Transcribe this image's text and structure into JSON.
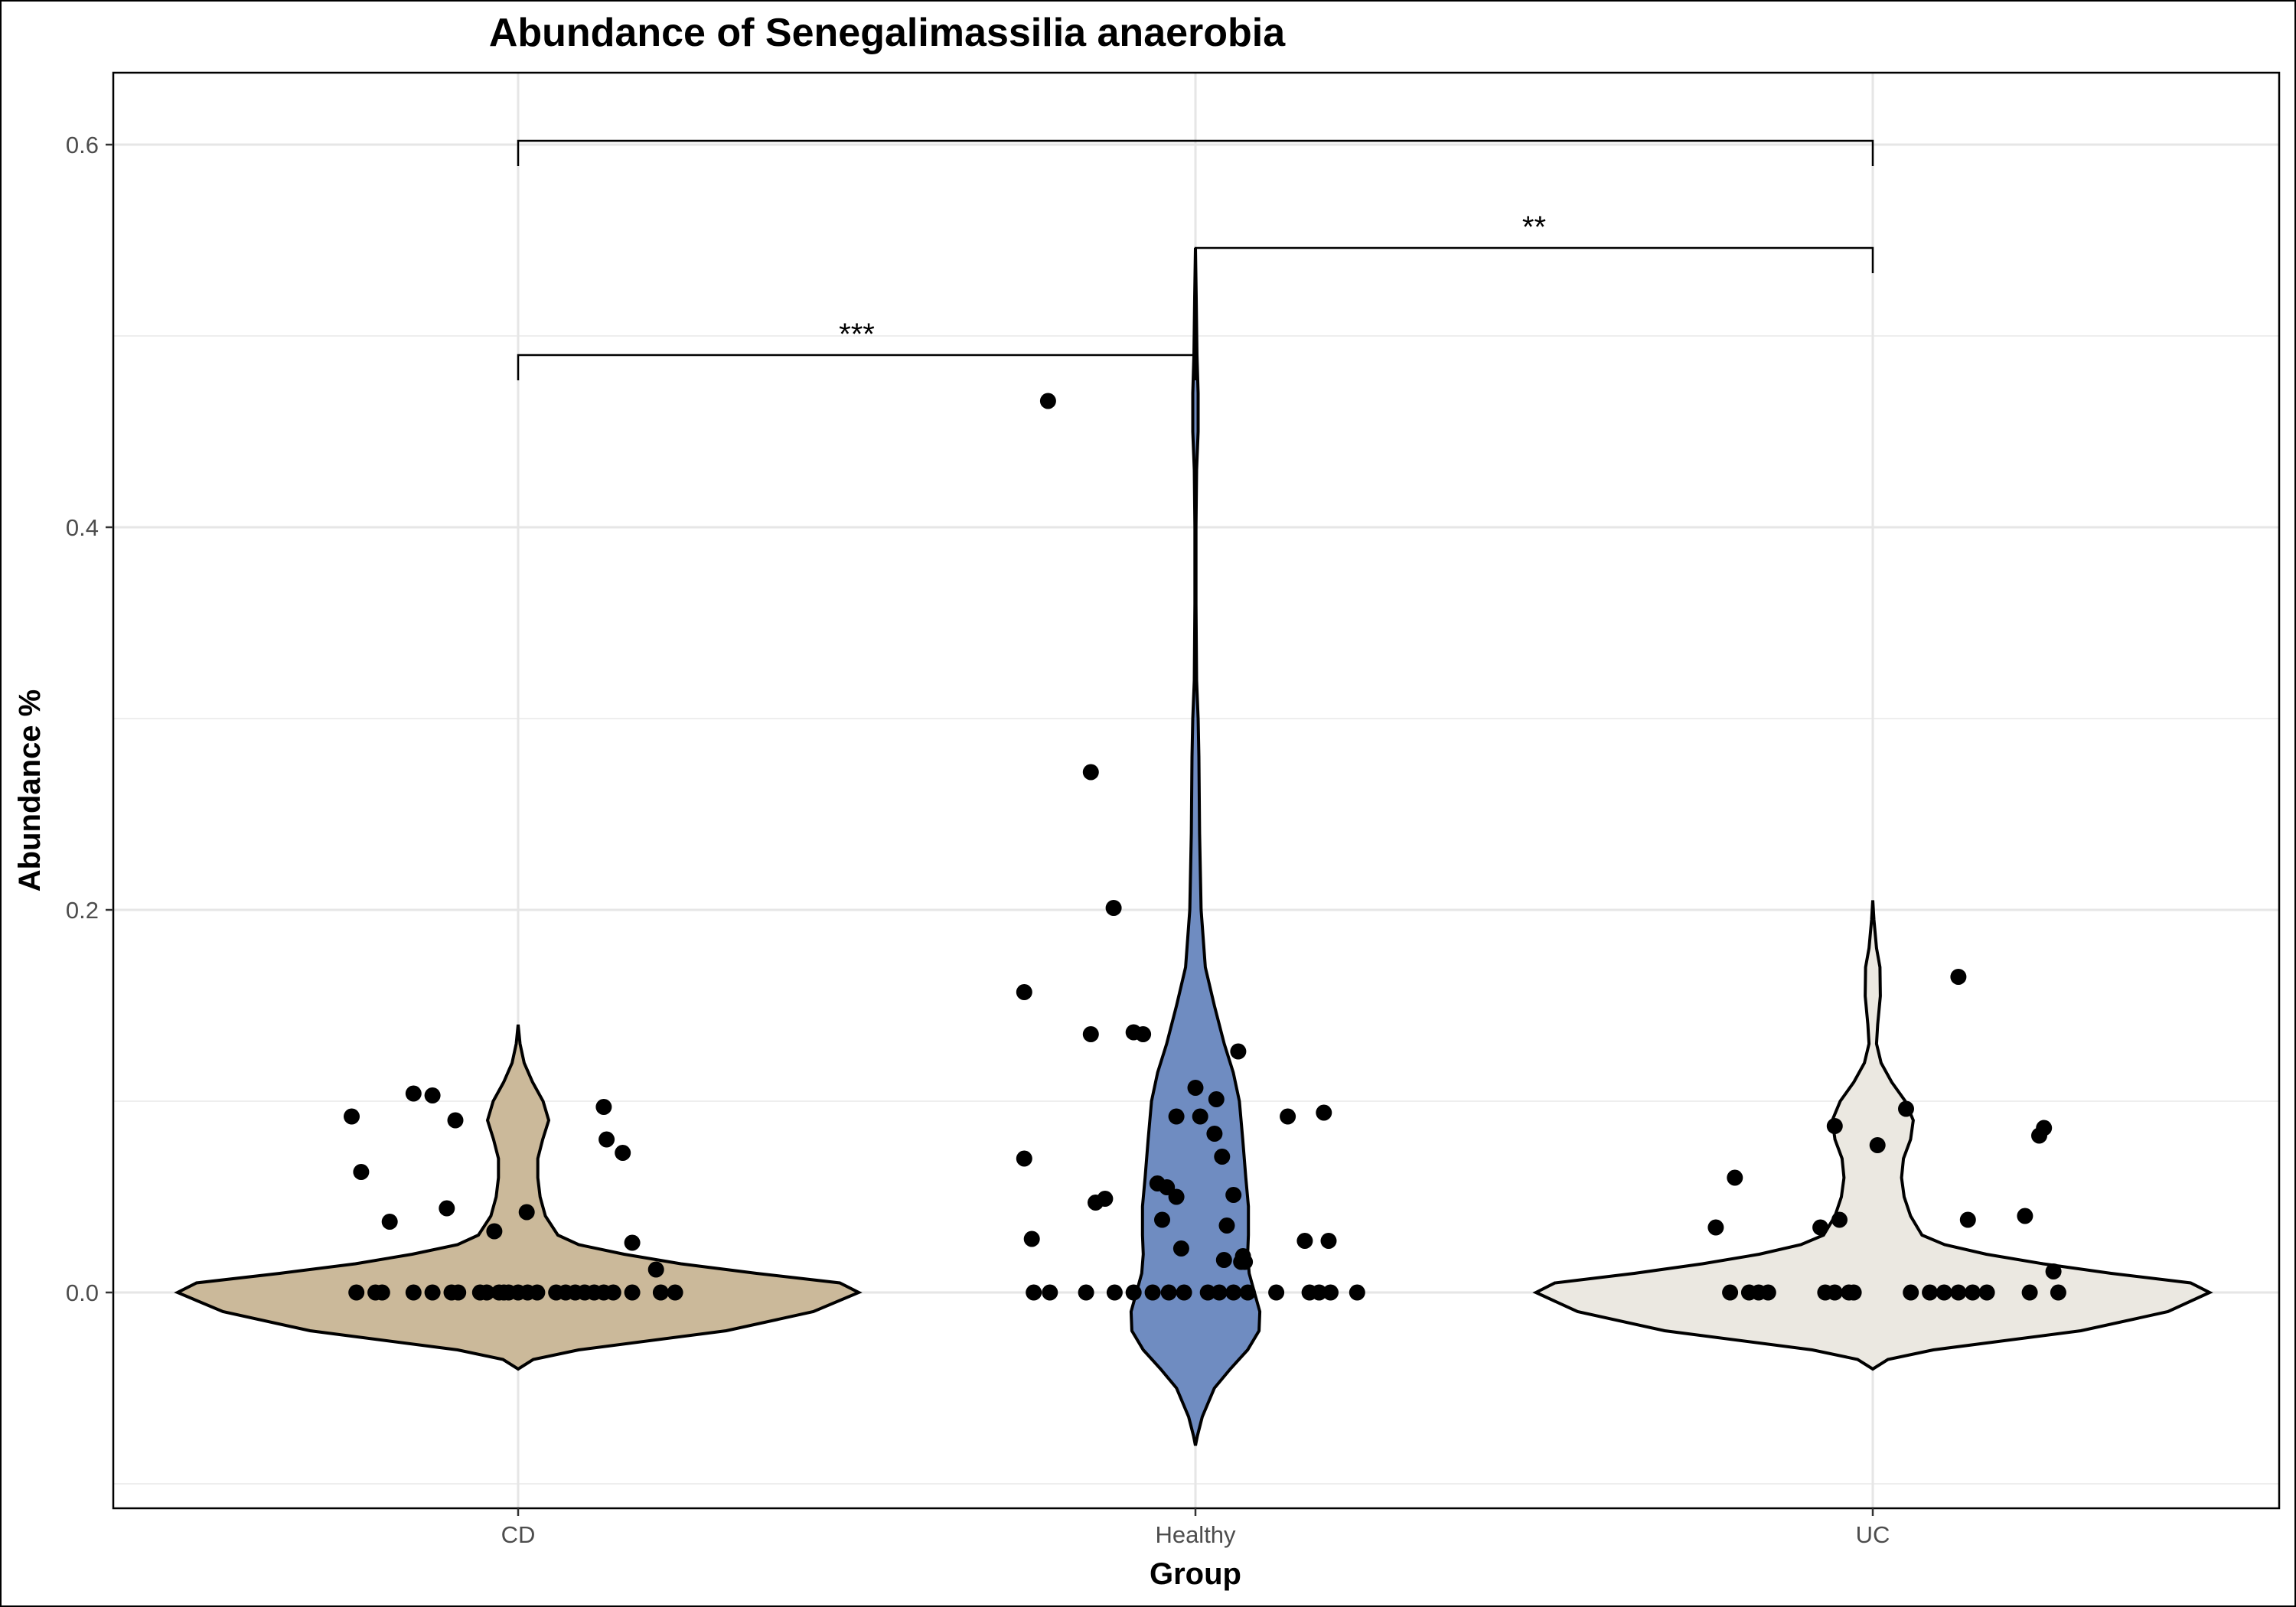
{
  "chart_data": {
    "type": "violin",
    "title": "Abundance of Senegalimassilia anaerobia",
    "xlabel": "Group",
    "ylabel": "Abundance %",
    "categories": [
      "CD",
      "Healthy",
      "UC"
    ],
    "ylim": [
      -0.1,
      0.64
    ],
    "y_ticks": [
      0.0,
      0.2,
      0.4,
      0.6
    ],
    "y_tick_labels": [
      "0.0",
      "0.2",
      "0.4",
      "0.6"
    ],
    "grid": true,
    "colors": {
      "CD": "#cbb99a",
      "Healthy": "#6f8cc1",
      "UC": "#ebe8e1"
    },
    "violins": [
      {
        "group": "CD",
        "profile": [
          [
            -0.04,
            0
          ],
          [
            -0.035,
            0.04
          ],
          [
            -0.03,
            0.16
          ],
          [
            -0.02,
            0.55
          ],
          [
            -0.01,
            0.78
          ],
          [
            0,
            0.9
          ],
          [
            0.005,
            0.85
          ],
          [
            0.01,
            0.63
          ],
          [
            0.015,
            0.43
          ],
          [
            0.02,
            0.28
          ],
          [
            0.025,
            0.16
          ],
          [
            0.03,
            0.105
          ],
          [
            0.04,
            0.072
          ],
          [
            0.05,
            0.058
          ],
          [
            0.06,
            0.052
          ],
          [
            0.07,
            0.052
          ],
          [
            0.08,
            0.065
          ],
          [
            0.09,
            0.081
          ],
          [
            0.1,
            0.066
          ],
          [
            0.11,
            0.038
          ],
          [
            0.12,
            0.016
          ],
          [
            0.13,
            0.005
          ],
          [
            0.14,
            0
          ]
        ]
      },
      {
        "group": "Healthy",
        "profile": [
          [
            -0.08,
            0
          ],
          [
            -0.075,
            0.005
          ],
          [
            -0.065,
            0.018
          ],
          [
            -0.05,
            0.05
          ],
          [
            -0.04,
            0.092
          ],
          [
            -0.03,
            0.138
          ],
          [
            -0.02,
            0.168
          ],
          [
            -0.01,
            0.17
          ],
          [
            0,
            0.156
          ],
          [
            0.01,
            0.142
          ],
          [
            0.02,
            0.138
          ],
          [
            0.03,
            0.14
          ],
          [
            0.045,
            0.14
          ],
          [
            0.06,
            0.133
          ],
          [
            0.08,
            0.125
          ],
          [
            0.1,
            0.116
          ],
          [
            0.115,
            0.1
          ],
          [
            0.13,
            0.076
          ],
          [
            0.15,
            0.05
          ],
          [
            0.17,
            0.026
          ],
          [
            0.2,
            0.015
          ],
          [
            0.24,
            0.011
          ],
          [
            0.28,
            0.009
          ],
          [
            0.3,
            0.007
          ],
          [
            0.32,
            0.003
          ],
          [
            0.36,
            0.0015
          ],
          [
            0.4,
            0.0015
          ],
          [
            0.43,
            0.003
          ],
          [
            0.45,
            0.007
          ],
          [
            0.47,
            0.007
          ],
          [
            0.49,
            0.004
          ],
          [
            0.52,
            0.002
          ],
          [
            0.546,
            0
          ]
        ]
      },
      {
        "group": "UC",
        "profile": [
          [
            -0.04,
            0
          ],
          [
            -0.035,
            0.04
          ],
          [
            -0.03,
            0.16
          ],
          [
            -0.02,
            0.55
          ],
          [
            -0.01,
            0.78
          ],
          [
            0,
            0.89
          ],
          [
            0.005,
            0.84
          ],
          [
            0.01,
            0.63
          ],
          [
            0.015,
            0.45
          ],
          [
            0.02,
            0.3
          ],
          [
            0.025,
            0.19
          ],
          [
            0.03,
            0.13
          ],
          [
            0.04,
            0.1
          ],
          [
            0.05,
            0.083
          ],
          [
            0.06,
            0.076
          ],
          [
            0.07,
            0.081
          ],
          [
            0.08,
            0.1
          ],
          [
            0.09,
            0.107
          ],
          [
            0.1,
            0.086
          ],
          [
            0.11,
            0.05
          ],
          [
            0.12,
            0.022
          ],
          [
            0.13,
            0.01
          ],
          [
            0.14,
            0.013
          ],
          [
            0.155,
            0.02
          ],
          [
            0.17,
            0.019
          ],
          [
            0.18,
            0.01
          ],
          [
            0.195,
            0.003
          ],
          [
            0.205,
            0
          ]
        ]
      }
    ],
    "points": [
      {
        "group": "CD",
        "x": [
          -0.17,
          -0.15,
          -0.143,
          -0.11,
          -0.09,
          -0.07,
          -0.063,
          -0.04,
          -0.033,
          -0.02,
          -0.015,
          -0.01,
          0,
          0.01,
          0.02,
          0.04,
          0.05,
          0.06,
          0.07,
          0.08,
          0.09,
          0.1,
          0.12,
          0.15,
          0.165,
          -0.175,
          -0.165,
          -0.135,
          -0.11,
          -0.09,
          -0.075,
          -0.066,
          -0.025,
          0.009,
          0.09,
          0.093,
          0.11,
          0.12,
          0.145
        ],
        "y": [
          0,
          0,
          0,
          0,
          0,
          0,
          0,
          0,
          0,
          0,
          0,
          0,
          0,
          0,
          0,
          0,
          0,
          0,
          0,
          0,
          0,
          0,
          0,
          0,
          0,
          0.092,
          0.063,
          0.037,
          0.104,
          0.103,
          0.044,
          0.09,
          0.032,
          0.042,
          0.097,
          0.08,
          0.073,
          0.026,
          0.012
        ]
      },
      {
        "group": "Healthy",
        "x": [
          -0.17,
          -0.153,
          -0.115,
          -0.085,
          -0.065,
          -0.045,
          -0.028,
          -0.012,
          0.013,
          0.025,
          0.04,
          0.055,
          0.085,
          0.12,
          0.13,
          0.142,
          0.17,
          -0.155,
          -0.11,
          -0.086,
          -0.065,
          -0.055,
          -0.04,
          -0.035,
          -0.03,
          -0.02,
          -0.015,
          0.0,
          0.005,
          0.02,
          0.022,
          0.028,
          0.033,
          0.04,
          0.045,
          0.048,
          0.097,
          0.135,
          0.14,
          -0.18,
          -0.18,
          -0.172,
          -0.105,
          -0.095,
          -0.11
        ],
        "y": [
          0,
          0,
          0,
          0,
          0,
          0,
          0,
          0,
          0,
          0,
          0,
          0,
          0,
          0,
          0,
          0,
          0,
          0.466,
          0.272,
          0.201,
          0.136,
          0.135,
          0.057,
          0.038,
          0.055,
          0.092,
          0.023,
          0.107,
          0.092,
          0.083,
          0.101,
          0.071,
          0.035,
          0.051,
          0.126,
          0.016,
          0.092,
          0.094,
          0.027,
          0.157,
          0.07,
          0.028,
          0.047,
          0.049,
          0.135
        ],
        "extra": {
          "x": [
            0.05,
            0.052,
            -0.02,
            0.03,
            0.115
          ],
          "y": [
            0.019,
            0.016,
            0.05,
            0.017,
            0.027
          ]
        }
      },
      {
        "group": "UC",
        "x": [
          -0.15,
          -0.13,
          -0.12,
          -0.11,
          -0.05,
          -0.04,
          -0.025,
          -0.02,
          0.04,
          0.06,
          0.075,
          0.09,
          0.105,
          0.12,
          0.165,
          -0.165,
          -0.145,
          -0.055,
          -0.04,
          -0.035,
          0.005,
          0.035,
          0.09,
          0.1,
          0.16,
          0.175,
          0.18,
          0.19,
          0.195
        ],
        "y": [
          0,
          0,
          0,
          0,
          0,
          0,
          0,
          0,
          0,
          0,
          0,
          0,
          0,
          0,
          0,
          0.034,
          0.06,
          0.034,
          0.087,
          0.038,
          0.077,
          0.096,
          0.165,
          0.038,
          0.04,
          0.082,
          0.086,
          0.011,
          0.0
        ]
      }
    ],
    "significance": [
      {
        "from": "CD",
        "to": "Healthy",
        "y": 0.49,
        "label": "***"
      },
      {
        "from": "Healthy",
        "to": "UC",
        "y": 0.546,
        "label": "**"
      },
      {
        "from": "CD",
        "to": "UC",
        "y": 0.602,
        "label": ""
      }
    ]
  }
}
